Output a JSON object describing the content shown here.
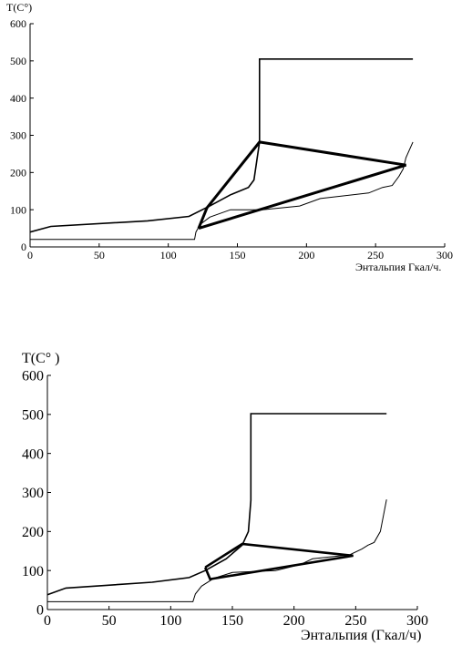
{
  "chart_data": [
    {
      "type": "line",
      "ylabel": "T(C°)",
      "xlabel": "Энтальпия Гкал/ч.",
      "xlim": [
        0,
        300
      ],
      "ylim": [
        0,
        600
      ],
      "x_ticks": [
        0,
        50,
        100,
        150,
        200,
        250,
        300
      ],
      "y_ticks": [
        0,
        100,
        200,
        300,
        400,
        500,
        600
      ],
      "grid": false,
      "legend": "none",
      "series": [
        {
          "values": [
            [
              0,
              20
            ],
            [
              119,
              20
            ],
            [
              120,
              40
            ],
            [
              123,
              60
            ],
            [
              130,
              80
            ],
            [
              145,
              100
            ],
            [
              168,
              100
            ],
            [
              195,
              110
            ],
            [
              210,
              130
            ],
            [
              245,
              145
            ],
            [
              255,
              160
            ],
            [
              262,
              165
            ],
            [
              267,
              190
            ],
            [
              270,
              210
            ],
            [
              272,
              240
            ],
            [
              277,
              282
            ]
          ],
          "style": "thin"
        },
        {
          "values": [
            [
              0,
              40
            ],
            [
              15,
              55
            ],
            [
              85,
              70
            ],
            [
              115,
              82
            ],
            [
              130,
              110
            ],
            [
              145,
              140
            ],
            [
              158,
              160
            ],
            [
              162,
              180
            ],
            [
              166,
              282
            ],
            [
              166,
              505
            ],
            [
              277,
              505
            ]
          ],
          "style": "medium"
        },
        {
          "values": [
            [
              122,
              50
            ],
            [
              128,
              105
            ],
            [
              166,
              282
            ],
            [
              272,
              220
            ],
            [
              122,
              50
            ]
          ],
          "style": "thick"
        }
      ]
    },
    {
      "type": "line",
      "ylabel": "T(C° )",
      "xlabel": "Энтальпия (Гкал/ч)",
      "xlim": [
        0,
        300
      ],
      "ylim": [
        0,
        600
      ],
      "x_ticks": [
        0,
        50,
        100,
        150,
        200,
        250,
        300
      ],
      "y_ticks": [
        0,
        100,
        200,
        300,
        400,
        500,
        600
      ],
      "grid": false,
      "legend": "none",
      "series": [
        {
          "values": [
            [
              0,
              20
            ],
            [
              118,
              20
            ],
            [
              120,
              40
            ],
            [
              125,
              60
            ],
            [
              135,
              80
            ],
            [
              150,
              95
            ],
            [
              185,
              100
            ],
            [
              205,
              115
            ],
            [
              215,
              130
            ],
            [
              245,
              140
            ],
            [
              255,
              155
            ],
            [
              260,
              165
            ],
            [
              265,
              172
            ],
            [
              270,
              200
            ],
            [
              275,
              282
            ]
          ],
          "style": "thin"
        },
        {
          "values": [
            [
              0,
              38
            ],
            [
              15,
              55
            ],
            [
              85,
              70
            ],
            [
              115,
              82
            ],
            [
              128,
              100
            ],
            [
              145,
              130
            ],
            [
              158,
              165
            ],
            [
              163,
              200
            ],
            [
              165,
              280
            ],
            [
              165,
              502
            ],
            [
              275,
              502
            ]
          ],
          "style": "medium"
        },
        {
          "values": [
            [
              128,
              108
            ],
            [
              132,
              78
            ],
            [
              248,
              138
            ],
            [
              158,
              168
            ],
            [
              128,
              108
            ]
          ],
          "style": "thick"
        }
      ]
    }
  ]
}
